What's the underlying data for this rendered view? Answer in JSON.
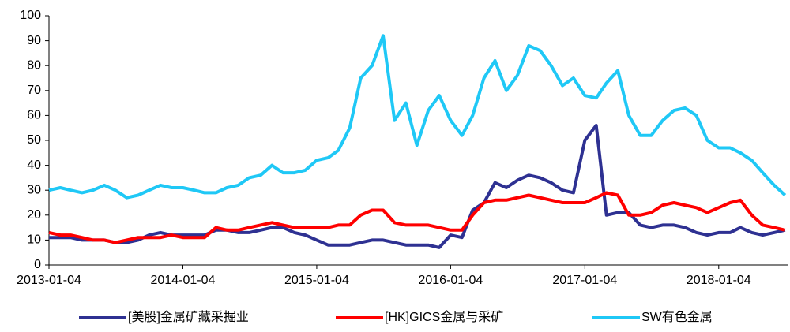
{
  "chart_data": {
    "type": "line",
    "x": [
      "2013-01-04",
      "2013-02-04",
      "2013-03-04",
      "2013-04-04",
      "2013-05-04",
      "2013-06-04",
      "2013-07-04",
      "2013-08-04",
      "2013-09-04",
      "2013-10-04",
      "2013-11-04",
      "2013-12-04",
      "2014-01-04",
      "2014-02-04",
      "2014-03-04",
      "2014-04-04",
      "2014-05-04",
      "2014-06-04",
      "2014-07-04",
      "2014-08-04",
      "2014-09-04",
      "2014-10-04",
      "2014-11-04",
      "2014-12-04",
      "2015-01-04",
      "2015-02-04",
      "2015-03-04",
      "2015-04-04",
      "2015-05-04",
      "2015-06-04",
      "2015-07-04",
      "2015-08-04",
      "2015-09-04",
      "2015-10-04",
      "2015-11-04",
      "2015-12-04",
      "2016-01-04",
      "2016-02-04",
      "2016-03-04",
      "2016-04-04",
      "2016-05-04",
      "2016-06-04",
      "2016-07-04",
      "2016-08-04",
      "2016-09-04",
      "2016-10-04",
      "2016-11-04",
      "2016-12-04",
      "2017-01-04",
      "2017-02-04",
      "2017-03-04",
      "2017-04-04",
      "2017-05-04",
      "2017-06-04",
      "2017-07-04",
      "2017-08-04",
      "2017-09-04",
      "2017-10-04",
      "2017-11-04",
      "2017-12-04",
      "2018-01-04",
      "2018-02-04",
      "2018-03-04",
      "2018-04-04",
      "2018-05-04",
      "2018-06-04",
      "2018-07-04"
    ],
    "series": [
      {
        "name": "[美股]金属矿藏采掘业",
        "color": "#2e3192",
        "values": [
          11,
          11,
          11,
          10,
          10,
          10,
          9,
          9,
          10,
          12,
          13,
          12,
          12,
          12,
          12,
          14,
          14,
          13,
          13,
          14,
          15,
          15,
          13,
          12,
          10,
          8,
          8,
          8,
          9,
          10,
          10,
          9,
          8,
          8,
          8,
          7,
          12,
          11,
          22,
          25,
          33,
          31,
          34,
          36,
          35,
          33,
          30,
          29,
          50,
          56,
          20,
          21,
          21,
          16,
          15,
          16,
          16,
          15,
          13,
          12,
          13,
          13,
          15,
          13,
          12,
          13,
          14
        ]
      },
      {
        "name": "[HK]GICS金属与采矿",
        "color": "#ff0000",
        "values": [
          13,
          12,
          12,
          11,
          10,
          10,
          9,
          10,
          11,
          11,
          11,
          12,
          11,
          11,
          11,
          15,
          14,
          14,
          15,
          16,
          17,
          16,
          15,
          15,
          15,
          15,
          16,
          16,
          20,
          22,
          22,
          17,
          16,
          16,
          16,
          15,
          14,
          14,
          20,
          25,
          26,
          26,
          27,
          28,
          27,
          26,
          25,
          25,
          25,
          27,
          29,
          28,
          20,
          20,
          21,
          24,
          25,
          24,
          23,
          21,
          23,
          25,
          26,
          20,
          16,
          15,
          14
        ]
      },
      {
        "name": "SW有色金属",
        "color": "#1fc8f6",
        "values": [
          30,
          31,
          30,
          29,
          30,
          32,
          30,
          27,
          28,
          30,
          32,
          31,
          31,
          30,
          29,
          29,
          31,
          32,
          35,
          36,
          40,
          37,
          37,
          38,
          42,
          43,
          46,
          55,
          75,
          80,
          92,
          58,
          65,
          48,
          62,
          68,
          58,
          52,
          60,
          75,
          82,
          70,
          76,
          88,
          86,
          80,
          72,
          75,
          68,
          67,
          73,
          78,
          60,
          52,
          52,
          58,
          62,
          63,
          60,
          50,
          47,
          47,
          45,
          42,
          37,
          32,
          28
        ]
      }
    ],
    "xlim": [
      "2013-01-04",
      "2018-07-13"
    ],
    "xticks": [
      "2013-01-04",
      "2014-01-04",
      "2015-01-04",
      "2016-01-04",
      "2017-01-04",
      "2018-01-04"
    ],
    "ylim": [
      0,
      100
    ],
    "yticks": [
      0,
      10,
      20,
      30,
      40,
      50,
      60,
      70,
      80,
      90,
      100
    ],
    "legend": "bottom"
  }
}
